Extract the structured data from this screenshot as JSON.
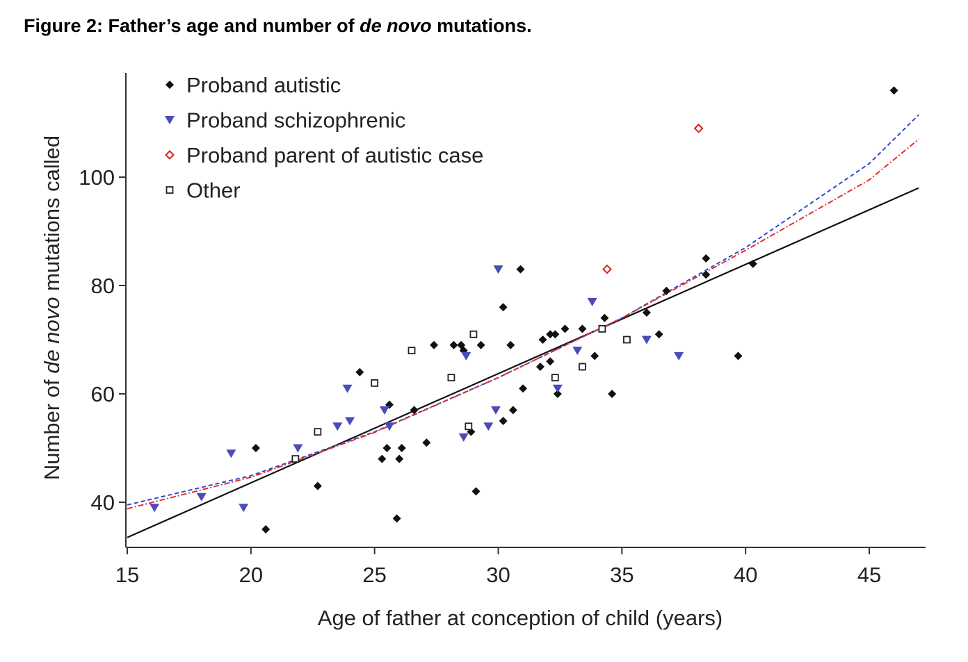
{
  "figure": {
    "title_prefix": "Figure 2: Father’s age and number of ",
    "title_italic": "de novo",
    "title_suffix": " mutations."
  },
  "chart_data": {
    "type": "scatter",
    "xlabel": "Age of father at conception of child (years)",
    "ylabel_prefix": "Number of ",
    "ylabel_italic": "de novo",
    "ylabel_suffix": " mutations called",
    "xlim": [
      15,
      47
    ],
    "ylim": [
      32,
      118
    ],
    "x_ticks": [
      15,
      20,
      25,
      30,
      35,
      40,
      45
    ],
    "y_ticks": [
      40,
      60,
      80,
      100
    ],
    "legend_position": "top-left",
    "grid": false,
    "series": [
      {
        "name": "Proband autistic",
        "marker": "diamond-filled",
        "color": "#111111",
        "points": [
          [
            20.2,
            50
          ],
          [
            20.6,
            35
          ],
          [
            22.7,
            43
          ],
          [
            24.4,
            64
          ],
          [
            25.3,
            48
          ],
          [
            25.5,
            50
          ],
          [
            25.6,
            58
          ],
          [
            25.9,
            37
          ],
          [
            26.0,
            48
          ],
          [
            26.1,
            50
          ],
          [
            26.6,
            57
          ],
          [
            27.1,
            51
          ],
          [
            27.4,
            69
          ],
          [
            28.2,
            69
          ],
          [
            28.5,
            69
          ],
          [
            28.6,
            68
          ],
          [
            28.9,
            53
          ],
          [
            29.1,
            42
          ],
          [
            29.3,
            69
          ],
          [
            30.2,
            55
          ],
          [
            30.2,
            76
          ],
          [
            30.5,
            69
          ],
          [
            30.6,
            57
          ],
          [
            30.9,
            83
          ],
          [
            31.0,
            61
          ],
          [
            31.7,
            65
          ],
          [
            31.8,
            70
          ],
          [
            32.1,
            66
          ],
          [
            32.1,
            71
          ],
          [
            32.3,
            71
          ],
          [
            32.4,
            60
          ],
          [
            32.7,
            72
          ],
          [
            33.4,
            72
          ],
          [
            33.4,
            65
          ],
          [
            33.9,
            67
          ],
          [
            34.3,
            74
          ],
          [
            34.6,
            60
          ],
          [
            36.0,
            75
          ],
          [
            36.5,
            71
          ],
          [
            36.8,
            79
          ],
          [
            38.4,
            85
          ],
          [
            38.4,
            82
          ],
          [
            39.7,
            67
          ],
          [
            40.3,
            84
          ],
          [
            46.0,
            116
          ]
        ]
      },
      {
        "name": "Proband schizophrenic",
        "marker": "triangle-down",
        "color": "#4a4ab8",
        "points": [
          [
            16.1,
            39
          ],
          [
            18.0,
            41
          ],
          [
            19.2,
            49
          ],
          [
            19.7,
            39
          ],
          [
            21.9,
            50
          ],
          [
            23.5,
            54
          ],
          [
            23.9,
            61
          ],
          [
            24.0,
            55
          ],
          [
            25.4,
            57
          ],
          [
            25.6,
            54
          ],
          [
            28.6,
            52
          ],
          [
            28.7,
            67
          ],
          [
            29.6,
            54
          ],
          [
            29.9,
            57
          ],
          [
            30.0,
            83
          ],
          [
            32.4,
            61
          ],
          [
            33.2,
            68
          ],
          [
            33.8,
            77
          ],
          [
            36.0,
            70
          ],
          [
            37.3,
            67
          ]
        ]
      },
      {
        "name": "Proband parent of autistic case",
        "marker": "diamond-open",
        "color": "#d42020",
        "points": [
          [
            34.4,
            83
          ],
          [
            38.1,
            109
          ]
        ]
      },
      {
        "name": "Other",
        "marker": "square-open",
        "color": "#222222",
        "points": [
          [
            21.8,
            48
          ],
          [
            22.7,
            53
          ],
          [
            25.0,
            62
          ],
          [
            26.5,
            68
          ],
          [
            28.1,
            63
          ],
          [
            28.8,
            54
          ],
          [
            29.0,
            71
          ],
          [
            32.3,
            63
          ],
          [
            33.4,
            65
          ],
          [
            34.2,
            72
          ],
          [
            35.2,
            70
          ]
        ]
      }
    ],
    "fits": [
      {
        "style": "solid",
        "color": "#111111",
        "points": [
          [
            15,
            33.5
          ],
          [
            47,
            98
          ]
        ]
      },
      {
        "style": "dashed",
        "color": "#2a4ad0",
        "points": [
          [
            15,
            39.5
          ],
          [
            20,
            44.9
          ],
          [
            25,
            53.0
          ],
          [
            30,
            63.0
          ],
          [
            35,
            74.0
          ],
          [
            40,
            87.0
          ],
          [
            45,
            102.5
          ],
          [
            47,
            111.5
          ]
        ]
      },
      {
        "style": "dashdot",
        "color": "#e03030",
        "points": [
          [
            15,
            38.8
          ],
          [
            20,
            44.6
          ],
          [
            25,
            52.9
          ],
          [
            30,
            63.0
          ],
          [
            35,
            74.0
          ],
          [
            40,
            86.5
          ],
          [
            45,
            99.5
          ],
          [
            47,
            107.0
          ]
        ]
      }
    ]
  }
}
